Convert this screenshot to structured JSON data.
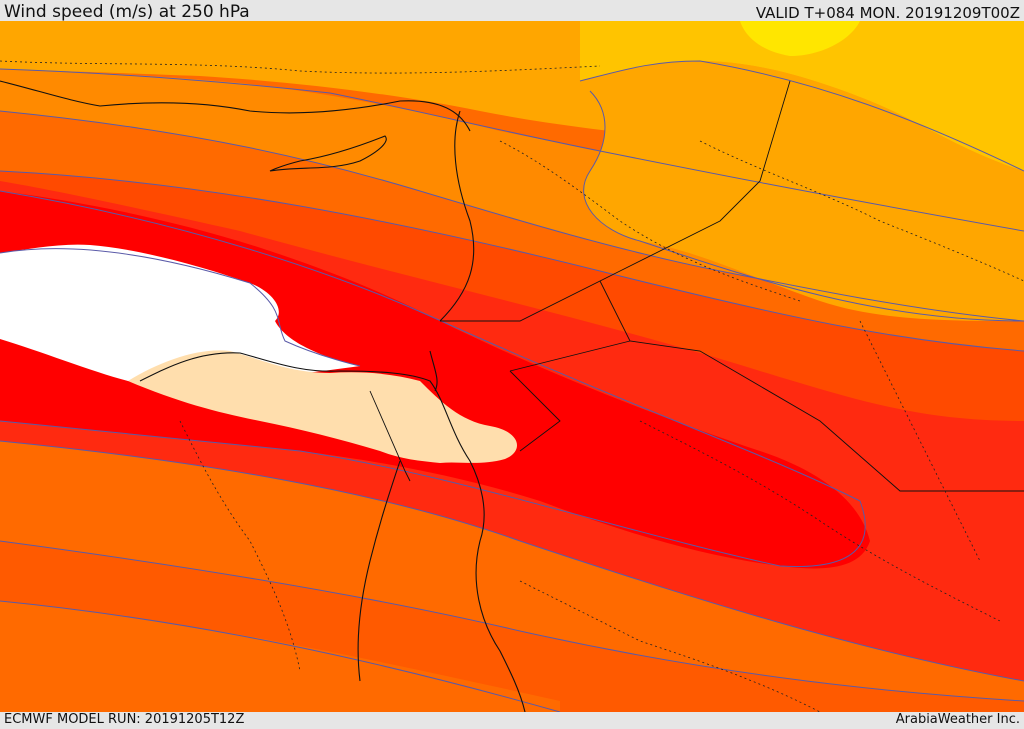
{
  "header": {
    "title": "Wind speed (m/s) at 250 hPa",
    "valid": "VALID T+084 MON. 20191209T00Z"
  },
  "footer": {
    "model_run": "ECMWF MODEL RUN: 20191205T12Z",
    "credit": "ArabiaWeather Inc."
  },
  "map": {
    "variable": "wind speed",
    "level": "250 hPa",
    "contour_line_color": "#5a5aa8",
    "border_color": "#111111",
    "shading_colors": [
      "#ffe600",
      "#ffc400",
      "#ffa600",
      "#ff8a00",
      "#ff6a00",
      "#ff4a00",
      "#ff2a10",
      "#ff0000",
      "#ffffff",
      "#ffdead"
    ]
  }
}
